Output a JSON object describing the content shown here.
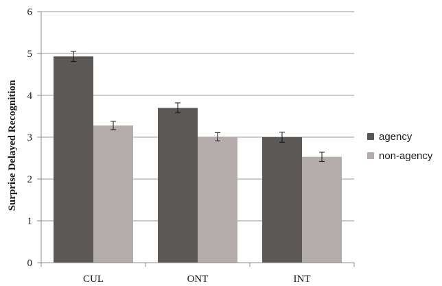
{
  "chart_data": {
    "type": "bar",
    "title": "",
    "xlabel": "",
    "ylabel": "Surprise Delayed Recognition",
    "categories": [
      "CUL",
      "ONT",
      "INT"
    ],
    "ylim": [
      0,
      6
    ],
    "yticks": [
      0,
      1,
      2,
      3,
      4,
      5,
      6
    ],
    "grid": "horizontal",
    "legend_position": "right",
    "series": [
      {
        "name": "agency",
        "values": [
          4.93,
          3.7,
          3.0
        ],
        "errors": [
          0.12,
          0.12,
          0.12
        ],
        "color": "#5b5856"
      },
      {
        "name": "non-agency",
        "values": [
          3.28,
          3.01,
          2.53
        ],
        "errors": [
          0.1,
          0.1,
          0.11
        ],
        "color": "#b3acaa"
      }
    ]
  }
}
